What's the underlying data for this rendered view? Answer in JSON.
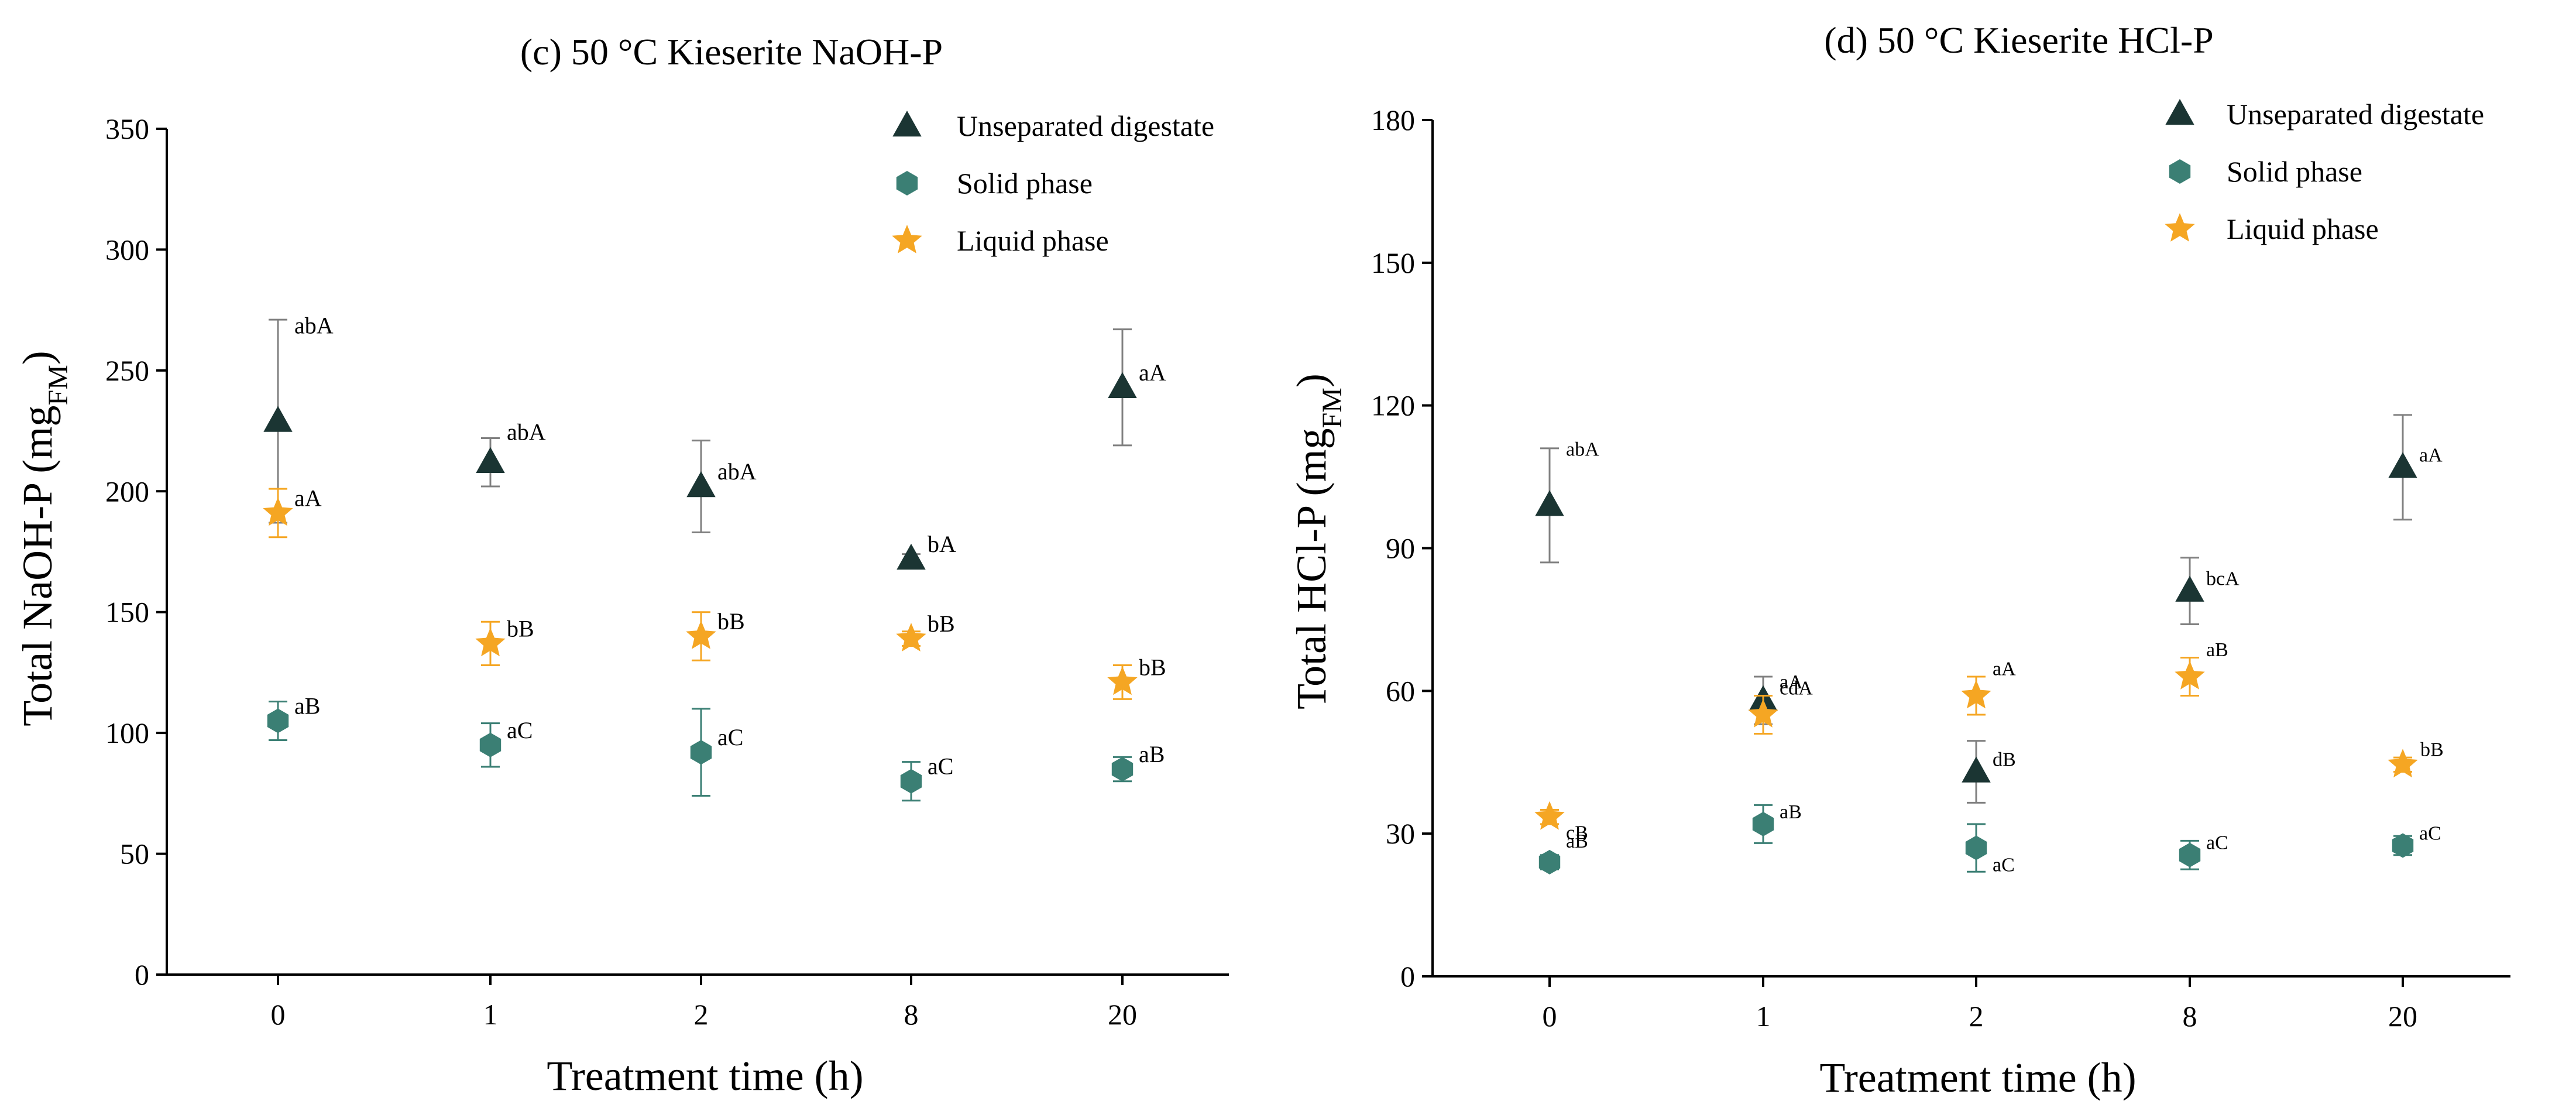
{
  "colors": {
    "unseparated": "#1b3533",
    "solid": "#3b7f74",
    "liquid": "#f5a623",
    "axis": "#000000",
    "errorbar": "#808080"
  },
  "chart_data": [
    {
      "type": "scatter",
      "title": "(c) 50 °C Kieserite NaOH-P",
      "xlabel": "Treatment time (h)",
      "ylabel_main": "Total NaOH-P (mg",
      "ylabel_sub": "FM",
      "ylabel_end": ")",
      "categories": [
        "0",
        "1",
        "2",
        "8",
        "20"
      ],
      "ylim": [
        0,
        350
      ],
      "yticks": [
        0,
        50,
        100,
        150,
        200,
        250,
        300,
        350
      ],
      "legend_position": "top-right",
      "series": [
        {
          "name": "Unseparated digestate",
          "marker": "triangle",
          "values": [
            229,
            212,
            202,
            172,
            243
          ],
          "errors": [
            42,
            10,
            19,
            2,
            24
          ],
          "labels": [
            "abA",
            "abA",
            "abA",
            "bA",
            "aA"
          ]
        },
        {
          "name": "Solid phase",
          "marker": "hexagon",
          "values": [
            105,
            95,
            92,
            80,
            85
          ],
          "errors": [
            8,
            9,
            18,
            8,
            5
          ],
          "labels": [
            "aB",
            "aC",
            "aC",
            "aC",
            "aB"
          ]
        },
        {
          "name": "Liquid phase",
          "marker": "star",
          "values": [
            191,
            137,
            140,
            139,
            121
          ],
          "errors": [
            10,
            9,
            10,
            3,
            7
          ],
          "labels": [
            "aA",
            "bB",
            "bB",
            "bB",
            "bB"
          ]
        }
      ]
    },
    {
      "type": "scatter",
      "title": "(d) 50 °C Kieserite HCl-P",
      "xlabel": "Treatment time (h)",
      "ylabel_main": "Total HCl-P (mg",
      "ylabel_sub": "FM",
      "ylabel_end": ")",
      "categories": [
        "0",
        "1",
        "2",
        "8",
        "20"
      ],
      "ylim": [
        0,
        180
      ],
      "yticks": [
        0,
        30,
        60,
        90,
        120,
        150,
        180
      ],
      "legend_position": "top-right",
      "series": [
        {
          "name": "Unseparated digestate",
          "marker": "triangle",
          "values": [
            99,
            58,
            43,
            81,
            107
          ],
          "errors": [
            12,
            5,
            6.5,
            7,
            11
          ],
          "labels": [
            "abA",
            "cdA",
            "dB",
            "bcA",
            "aA"
          ]
        },
        {
          "name": "Solid phase",
          "marker": "hexagon",
          "values": [
            24,
            32,
            27,
            25.5,
            27.5
          ],
          "errors": [
            1.5,
            4,
            5,
            3,
            2
          ],
          "labels": [
            "aB",
            "aB",
            "aC",
            "aC",
            "aC"
          ]
        },
        {
          "name": "Liquid phase",
          "marker": "star",
          "values": [
            33.5,
            55,
            59,
            63,
            44.5
          ],
          "errors": [
            1.5,
            4,
            4,
            4,
            1.5
          ],
          "labels": [
            "cB",
            "aA",
            "aA",
            "aB",
            "bB"
          ]
        }
      ]
    }
  ]
}
